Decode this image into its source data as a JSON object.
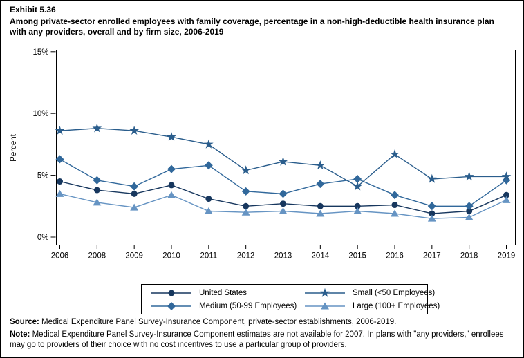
{
  "header": {
    "exhibit": "Exhibit 5.36",
    "title": "Among private-sector enrolled employees with family coverage, percentage in a non-high-deductible health insurance plan with any providers, overall and by firm size, 2006-2019"
  },
  "chart_data": {
    "type": "line",
    "categories": [
      "2006",
      "2008",
      "2009",
      "2010",
      "2011",
      "2012",
      "2013",
      "2014",
      "2015",
      "2016",
      "2017",
      "2018",
      "2019"
    ],
    "series": [
      {
        "name": "United States",
        "marker": "circle",
        "color": "#17375e",
        "values": [
          4.5,
          3.8,
          3.5,
          4.2,
          3.1,
          2.5,
          2.7,
          2.5,
          2.5,
          2.6,
          1.9,
          2.1,
          3.4
        ]
      },
      {
        "name": "Medium (50-99 Employees)",
        "marker": "diamond",
        "color": "#31689b",
        "values": [
          6.3,
          4.6,
          4.1,
          5.5,
          5.8,
          3.7,
          3.5,
          4.3,
          4.7,
          3.4,
          2.5,
          2.5,
          4.6
        ]
      },
      {
        "name": "Small (<50 Employees)",
        "marker": "star",
        "color": "#2a5d8c",
        "values": [
          8.6,
          8.8,
          8.6,
          8.1,
          7.5,
          5.4,
          6.1,
          5.8,
          4.1,
          6.7,
          4.7,
          4.9,
          4.9
        ]
      },
      {
        "name": "Large (100+ Employees)",
        "marker": "triangle",
        "color": "#6694c3",
        "values": [
          3.5,
          2.8,
          2.4,
          3.4,
          2.1,
          2.0,
          2.1,
          1.9,
          2.1,
          1.9,
          1.5,
          1.6,
          3.0
        ]
      }
    ],
    "ylabel": "Percent",
    "xlabel": "",
    "ylim": [
      0,
      15
    ],
    "yticks": [
      0,
      5,
      10,
      15
    ],
    "ytick_labels": [
      "0%",
      "5%",
      "10%",
      "15%"
    ],
    "grid": false,
    "legend_position": "bottom-box",
    "legend_order": [
      0,
      2,
      1,
      3
    ]
  },
  "footer": {
    "source_label": "Source:",
    "source_text": " Medical Expenditure Panel Survey-Insurance Component, private-sector establishments, 2006-2019.",
    "note_label": "Note:",
    "note_text": " Medical Expenditure Panel Survey-Insurance Component estimates are not available for 2007. In plans with \"any providers,\" enrollees may go to providers of their choice with no cost incentives to use a particular group of providers."
  }
}
